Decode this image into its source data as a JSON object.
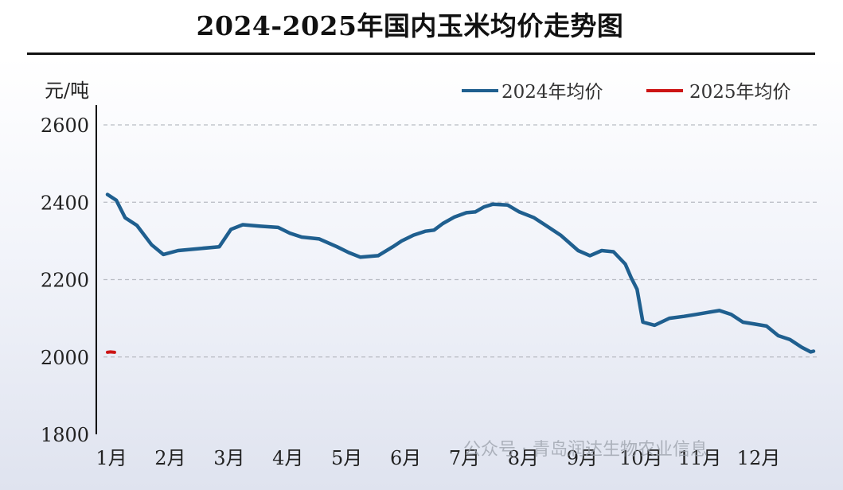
{
  "chart_data": {
    "type": "line",
    "title": "2024-2025年国内玉米均价走势图",
    "ylabel": "元/吨",
    "xlabel": "",
    "ylim": [
      1800,
      2600
    ],
    "yticks": [
      1800,
      2000,
      2200,
      2400,
      2600
    ],
    "xlim": [
      1,
      13
    ],
    "categories": [
      "1月",
      "2月",
      "3月",
      "4月",
      "5月",
      "6月",
      "7月",
      "8月",
      "9月",
      "10月",
      "11月",
      "12月"
    ],
    "grid": true,
    "legend_position": "top-right",
    "series": [
      {
        "name": "2024年均价",
        "color": "#1f5f8f",
        "x": [
          1.0,
          1.15,
          1.3,
          1.5,
          1.75,
          1.95,
          2.2,
          2.55,
          2.9,
          3.1,
          3.3,
          3.6,
          3.9,
          4.1,
          4.3,
          4.6,
          4.9,
          5.1,
          5.3,
          5.6,
          5.85,
          6.0,
          6.2,
          6.4,
          6.55,
          6.7,
          6.9,
          7.1,
          7.25,
          7.4,
          7.55,
          7.8,
          8.0,
          8.25,
          8.45,
          8.7,
          9.0,
          9.2,
          9.4,
          9.6,
          9.8,
          9.9,
          10.0,
          10.1,
          10.3,
          10.55,
          10.8,
          11.0,
          11.2,
          11.4,
          11.6,
          11.8,
          12.0,
          12.2,
          12.4,
          12.6,
          12.8,
          12.95,
          13.0
        ],
        "y": [
          2420,
          2405,
          2360,
          2340,
          2290,
          2265,
          2275,
          2280,
          2285,
          2330,
          2342,
          2338,
          2335,
          2320,
          2310,
          2305,
          2285,
          2270,
          2258,
          2262,
          2285,
          2300,
          2315,
          2325,
          2328,
          2345,
          2362,
          2373,
          2375,
          2388,
          2395,
          2393,
          2375,
          2360,
          2340,
          2315,
          2275,
          2262,
          2275,
          2272,
          2240,
          2205,
          2175,
          2090,
          2082,
          2100,
          2105,
          2110,
          2115,
          2120,
          2110,
          2090,
          2085,
          2080,
          2055,
          2045,
          2025,
          2013,
          2015
        ]
      },
      {
        "name": "2025年均价",
        "color": "#cc1414",
        "x": [
          1.0,
          1.05,
          1.12
        ],
        "y": [
          2012,
          2013,
          2012
        ]
      }
    ],
    "annotations": [
      "公众号 · 青岛润达生物农业信息"
    ]
  }
}
